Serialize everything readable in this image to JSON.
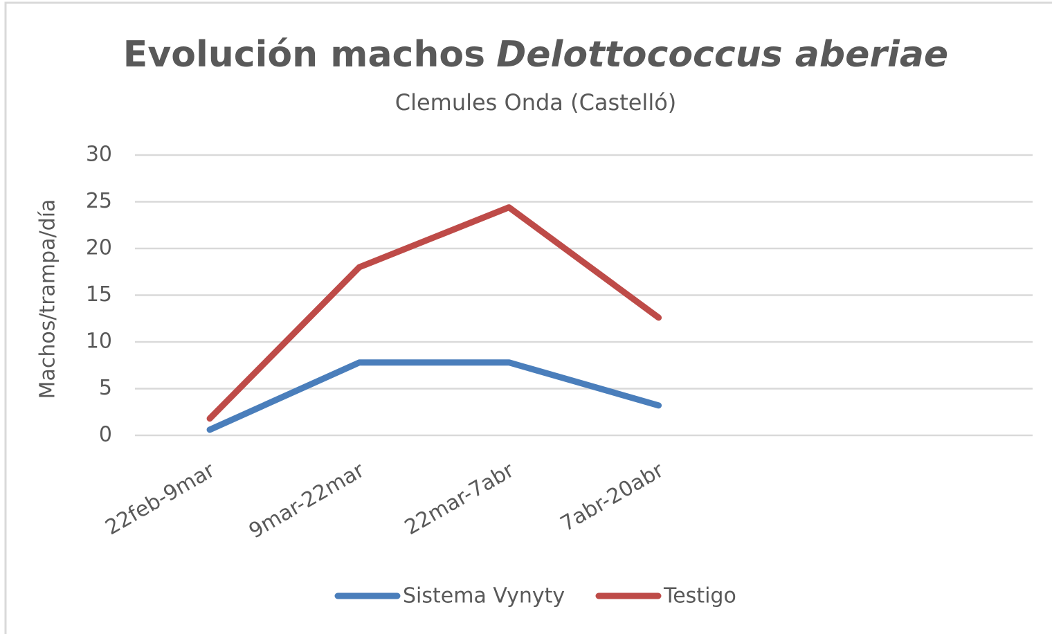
{
  "chart_data": {
    "type": "line",
    "title": [
      "Evolución machos",
      "Delottococcus aberiae"
    ],
    "subtitle": "Clemules Onda (Castelló)",
    "y_label": "Machos/trampa/día",
    "categories": [
      "22feb-9mar",
      "9mar-22mar",
      "22mar-7abr",
      "7abr-20abr",
      null,
      null
    ],
    "series": [
      {
        "name": "Sistema Vynyty",
        "color": "#4a7ebb",
        "values": [
          0.6,
          7.8,
          7.8,
          3.2,
          null,
          null
        ]
      },
      {
        "name": "Testigo",
        "color": "#be4b48",
        "values": [
          1.8,
          18,
          24.4,
          12.6,
          null,
          null
        ]
      }
    ],
    "ylim": [
      0,
      30
    ],
    "yticks": [
      0,
      5,
      10,
      15,
      20,
      25,
      30
    ],
    "grid": true,
    "legend": "bottom"
  }
}
